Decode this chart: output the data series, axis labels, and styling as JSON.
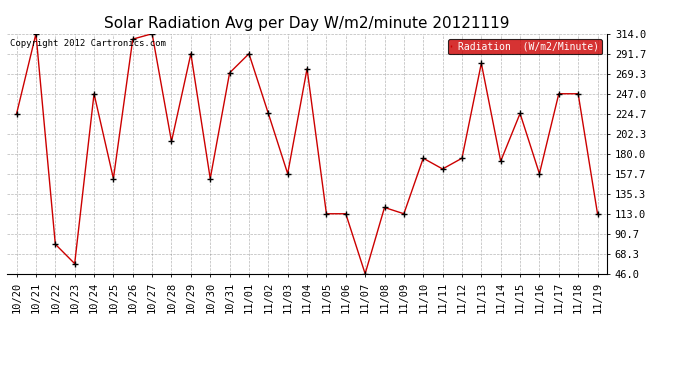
{
  "title": "Solar Radiation Avg per Day W/m2/minute 20121119",
  "copyright": "Copyright 2012 Cartronics.com",
  "legend_label": "Radiation  (W/m2/Minute)",
  "dates": [
    "10/20",
    "10/21",
    "10/22",
    "10/23",
    "10/24",
    "10/25",
    "10/26",
    "10/27",
    "10/28",
    "10/29",
    "10/30",
    "10/31",
    "11/01",
    "11/02",
    "11/03",
    "11/04",
    "11/05",
    "11/06",
    "11/07",
    "11/08",
    "11/09",
    "11/10",
    "11/11",
    "11/12",
    "11/13",
    "11/14",
    "11/15",
    "11/16",
    "11/17",
    "11/18",
    "11/19"
  ],
  "values": [
    224.7,
    314.0,
    79.0,
    57.3,
    247.0,
    152.3,
    308.0,
    314.0,
    193.7,
    291.7,
    152.3,
    270.3,
    291.7,
    225.0,
    157.7,
    275.0,
    113.0,
    113.0,
    46.0,
    120.0,
    113.0,
    175.0,
    163.0,
    175.0,
    281.0,
    171.7,
    225.0,
    157.7,
    247.0,
    247.0,
    113.0
  ],
  "line_color": "#cc0000",
  "marker_color": "#000000",
  "bg_color": "#ffffff",
  "plot_bg_color": "#ffffff",
  "grid_color": "#888888",
  "title_fontsize": 11,
  "tick_fontsize": 7.5,
  "copyright_fontsize": 6.5,
  "legend_bg": "#cc0000",
  "legend_text_color": "#ffffff",
  "legend_fontsize": 7,
  "ymin": 46.0,
  "ymax": 314.0,
  "yticks": [
    46.0,
    68.3,
    90.7,
    113.0,
    135.3,
    157.7,
    180.0,
    202.3,
    224.7,
    247.0,
    269.3,
    291.7,
    314.0
  ]
}
